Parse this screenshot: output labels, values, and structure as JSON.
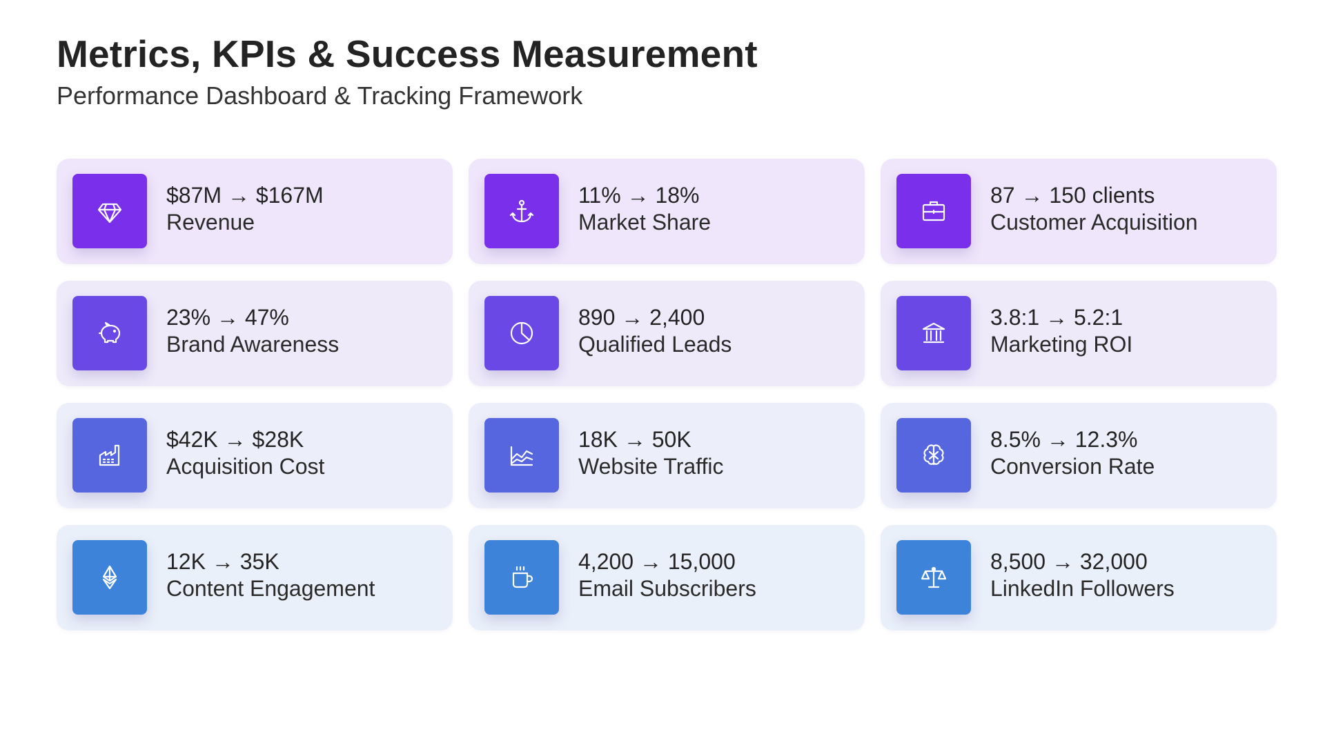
{
  "header": {
    "title": "Metrics, KPIs & Success Measurement",
    "subtitle": "Performance Dashboard & Tracking Framework"
  },
  "colors": {
    "row1": "#7a2fea",
    "row2": "#6a48e6",
    "row3": "#5566df",
    "row4": "#3d83d9"
  },
  "metrics": [
    {
      "value": "$87M → $167M",
      "label": "Revenue",
      "icon": "diamond-icon"
    },
    {
      "value": "11% → 18%",
      "label": "Market Share",
      "icon": "anchor-icon"
    },
    {
      "value": "87 → 150 clients",
      "label": "Customer Acquisition",
      "icon": "briefcase-icon"
    },
    {
      "value": "23% → 47%",
      "label": "Brand Awareness",
      "icon": "piggy-bank-icon"
    },
    {
      "value": "890 → 2,400",
      "label": "Qualified Leads",
      "icon": "pie-chart-icon"
    },
    {
      "value": "3.8:1 → 5.2:1",
      "label": "Marketing ROI",
      "icon": "bank-icon"
    },
    {
      "value": "$42K → $28K",
      "label": "Acquisition Cost",
      "icon": "factory-icon"
    },
    {
      "value": "18K → 50K",
      "label": "Website Traffic",
      "icon": "area-chart-icon"
    },
    {
      "value": "8.5% → 12.3%",
      "label": "Conversion Rate",
      "icon": "brain-icon"
    },
    {
      "value": "12K → 35K",
      "label": "Content Engagement",
      "icon": "ethereum-icon"
    },
    {
      "value": "4,200 → 15,000",
      "label": "Email Subscribers",
      "icon": "coffee-cup-icon"
    },
    {
      "value": "8,500 → 32,000",
      "label": "LinkedIn Followers",
      "icon": "scale-icon"
    }
  ]
}
